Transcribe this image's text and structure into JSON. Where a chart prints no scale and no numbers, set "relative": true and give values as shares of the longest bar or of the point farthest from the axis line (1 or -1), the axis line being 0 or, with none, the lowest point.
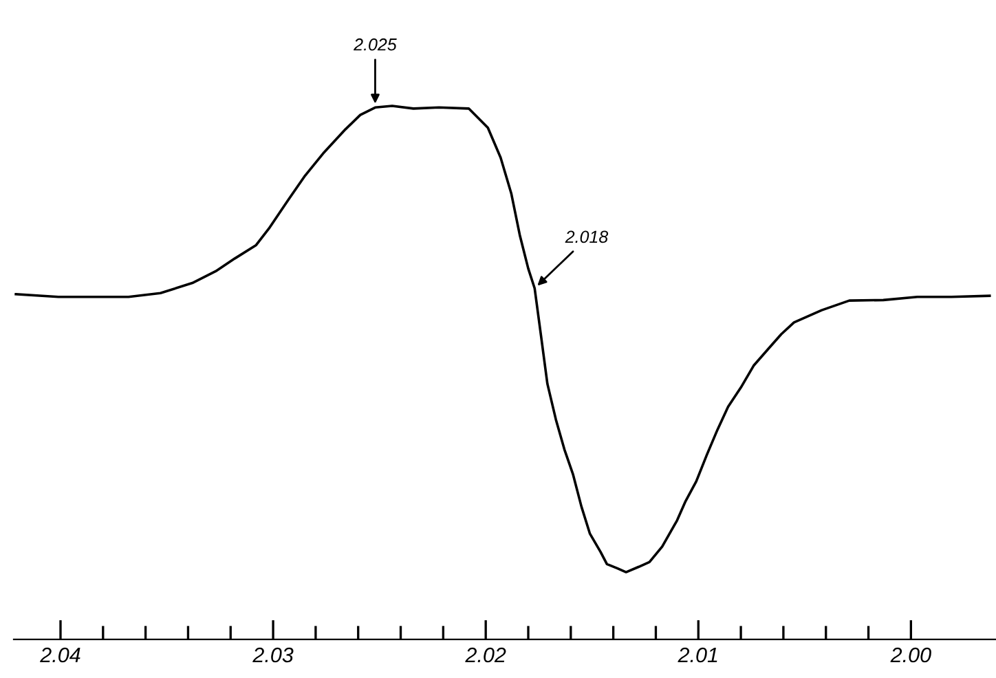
{
  "chart_data": {
    "type": "line",
    "relative": true,
    "grid": false,
    "legend": false,
    "marker": "none",
    "line_style": "solid",
    "x": [
      2.0421,
      2.0401,
      2.0382,
      2.0368,
      2.0353,
      2.0338,
      2.0327,
      2.0318,
      2.0308,
      2.0302,
      2.0293,
      2.0285,
      2.0276,
      2.0266,
      2.0259,
      2.0252,
      2.0244,
      2.0234,
      2.0222,
      2.0208,
      2.0199,
      2.0193,
      2.0188,
      2.0184,
      2.018,
      2.0177,
      2.0174,
      2.0171,
      2.0167,
      2.0163,
      2.0159,
      2.0155,
      2.0151,
      2.0146,
      2.0143,
      2.0138,
      2.0134,
      2.0128,
      2.0123,
      2.0117,
      2.011,
      2.0106,
      2.0101,
      2.0096,
      2.0091,
      2.0086,
      2.008,
      2.0074,
      2.0067,
      2.0061,
      2.0055,
      2.0042,
      2.0029,
      2.0013,
      1.9997,
      1.9981,
      1.9963
    ],
    "series": [
      {
        "color": "#000000",
        "values": [
          0.647,
          0.642,
          0.642,
          0.642,
          0.649,
          0.668,
          0.69,
          0.714,
          0.739,
          0.77,
          0.823,
          0.869,
          0.913,
          0.956,
          0.983,
          0.997,
          1.0,
          0.995,
          0.997,
          0.995,
          0.959,
          0.903,
          0.836,
          0.758,
          0.695,
          0.658,
          0.569,
          0.479,
          0.412,
          0.356,
          0.31,
          0.249,
          0.198,
          0.164,
          0.141,
          0.133,
          0.126,
          0.136,
          0.145,
          0.174,
          0.223,
          0.259,
          0.296,
          0.346,
          0.393,
          0.436,
          0.472,
          0.513,
          0.545,
          0.572,
          0.594,
          0.617,
          0.635,
          0.636,
          0.642,
          0.642,
          0.644
        ]
      }
    ],
    "xlim": [
      2.0422,
      1.996
    ],
    "xticks": [
      2.04,
      {
        "value": 2.038,
        "label": null
      },
      {
        "value": 2.036,
        "label": null
      },
      {
        "value": 2.034,
        "label": null
      },
      {
        "value": 2.032,
        "label": null
      },
      2.03,
      {
        "value": 2.028,
        "label": null
      },
      {
        "value": 2.026,
        "label": null
      },
      {
        "value": 2.024,
        "label": null
      },
      {
        "value": 2.022,
        "label": null
      },
      2.02,
      {
        "value": 2.018,
        "label": null
      },
      {
        "value": 2.016,
        "label": null
      },
      {
        "value": 2.014,
        "label": null
      },
      {
        "value": 2.012,
        "label": null
      },
      2.01,
      {
        "value": 2.008,
        "label": null
      },
      {
        "value": 2.006,
        "label": null
      },
      {
        "value": 2.004,
        "label": null
      },
      {
        "value": 2.002,
        "label": null
      },
      {
        "value": 2.0,
        "label": "2.00"
      }
    ],
    "annotations": [
      {
        "text": "2.025",
        "x": 2.0252,
        "y": 0.997
      },
      {
        "text": "2.018",
        "x": 2.0177,
        "y": 0.658
      }
    ]
  }
}
